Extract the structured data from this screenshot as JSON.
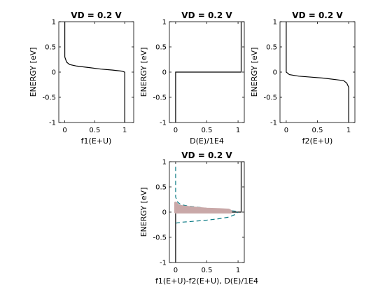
{
  "chart_data": [
    {
      "type": "line",
      "title": "VD = 0.2 V",
      "xlabel": "f1(E+U)",
      "ylabel": "ENERGY  [eV]",
      "xlim": [
        -0.1,
        1.15
      ],
      "ylim": [
        -1,
        1
      ],
      "xticks": [
        0,
        0.5,
        1
      ],
      "xtick_labels": [
        "0",
        "0.5",
        "1"
      ],
      "yticks": [
        -1,
        -0.5,
        0,
        0.5,
        1
      ],
      "ytick_labels": [
        "-1",
        "-0.5",
        "0",
        "0.5",
        "1"
      ],
      "grid": false,
      "series": [
        {
          "color": "#000000",
          "style": "solid",
          "points": [
            [
              0.0,
              1.0
            ],
            [
              0.0,
              0.3
            ],
            [
              0.03,
              0.2
            ],
            [
              0.08,
              0.15
            ],
            [
              0.2,
              0.12
            ],
            [
              0.4,
              0.09
            ],
            [
              0.6,
              0.06
            ],
            [
              0.8,
              0.04
            ],
            [
              0.95,
              0.02
            ],
            [
              1.0,
              0.0
            ],
            [
              1.0,
              -1.0
            ]
          ]
        }
      ]
    },
    {
      "type": "line",
      "title": "VD = 0.2 V",
      "xlabel": "D(E)/1E4",
      "ylabel": "ENERGY  [eV]",
      "xlim": [
        -0.1,
        1.1
      ],
      "ylim": [
        -1,
        1
      ],
      "xticks": [
        0,
        0.5,
        1
      ],
      "xtick_labels": [
        "0",
        "0.5",
        "1"
      ],
      "yticks": [
        -1,
        -0.5,
        0,
        0.5,
        1
      ],
      "ytick_labels": [
        "-1",
        "-0.5",
        "0",
        "0.5",
        "1"
      ],
      "grid": false,
      "series": [
        {
          "color": "#000000",
          "style": "solid",
          "points": [
            [
              0.0,
              -1.0
            ],
            [
              0.0,
              0.0
            ],
            [
              1.05,
              0.0
            ],
            [
              1.05,
              1.0
            ]
          ]
        }
      ]
    },
    {
      "type": "line",
      "title": "VD = 0.2 V",
      "xlabel": "f2(E+U)",
      "ylabel": "ENERGY  [eV]",
      "xlim": [
        -0.1,
        1.1
      ],
      "ylim": [
        -1,
        1
      ],
      "xticks": [
        0,
        0.5,
        1
      ],
      "xtick_labels": [
        "0",
        "0.5",
        "1"
      ],
      "yticks": [
        -1,
        -0.5,
        0,
        0.5,
        1
      ],
      "ytick_labels": [
        "-1",
        "-0.5",
        "0",
        "0.5",
        "1"
      ],
      "grid": false,
      "series": [
        {
          "color": "#000000",
          "style": "solid",
          "points": [
            [
              0.0,
              1.0
            ],
            [
              0.0,
              0.0
            ],
            [
              0.05,
              -0.05
            ],
            [
              0.2,
              -0.08
            ],
            [
              0.4,
              -0.1
            ],
            [
              0.6,
              -0.12
            ],
            [
              0.8,
              -0.15
            ],
            [
              0.92,
              -0.17
            ],
            [
              0.97,
              -0.22
            ],
            [
              1.0,
              -0.3
            ],
            [
              1.0,
              -1.0
            ]
          ]
        }
      ]
    },
    {
      "type": "line",
      "title": "VD = 0.2 V",
      "xlabel": "f1(E+U)-f2(E+U), D(E)/1E4",
      "ylabel": "ENERGY  [eV]",
      "xlim": [
        -0.1,
        1.1
      ],
      "ylim": [
        -1,
        1
      ],
      "xticks": [
        0,
        0.5,
        1
      ],
      "xtick_labels": [
        "0",
        "0.5",
        "1"
      ],
      "yticks": [
        -1,
        -0.5,
        0,
        0.5,
        1
      ],
      "ytick_labels": [
        "-1",
        "-0.5",
        "0",
        "0.5",
        "1"
      ],
      "grid": false,
      "series": [
        {
          "color": "#000000",
          "style": "solid",
          "points": [
            [
              0.0,
              -1.0
            ],
            [
              0.0,
              0.0
            ],
            [
              1.05,
              0.0
            ],
            [
              1.05,
              1.0
            ]
          ]
        },
        {
          "color": "#0e7c86",
          "style": "dashed",
          "points": [
            [
              0.0,
              0.9
            ],
            [
              0.0,
              0.3
            ],
            [
              0.03,
              0.2
            ],
            [
              0.08,
              0.15
            ],
            [
              0.2,
              0.12
            ],
            [
              0.4,
              0.09
            ],
            [
              0.6,
              0.06
            ],
            [
              0.8,
              0.04
            ],
            [
              0.95,
              0.02
            ],
            [
              1.0,
              0.0
            ]
          ]
        },
        {
          "color": "#0e7c86",
          "style": "dashed",
          "points": [
            [
              0.0,
              -0.22
            ],
            [
              0.1,
              -0.2
            ],
            [
              0.3,
              -0.18
            ],
            [
              0.5,
              -0.16
            ],
            [
              0.7,
              -0.13
            ],
            [
              0.85,
              -0.1
            ],
            [
              0.95,
              -0.05
            ],
            [
              1.0,
              0.0
            ]
          ]
        },
        {
          "color": "#c9a8a8",
          "style": "area",
          "points": [
            [
              0.0,
              0.18
            ],
            [
              0.05,
              0.12
            ],
            [
              0.15,
              0.1
            ],
            [
              0.3,
              0.08
            ],
            [
              0.5,
              0.06
            ],
            [
              0.7,
              0.05
            ],
            [
              0.85,
              0.04
            ],
            [
              0.88,
              0.02
            ],
            [
              0.88,
              0.0
            ],
            [
              0.0,
              0.0
            ]
          ]
        }
      ]
    }
  ]
}
